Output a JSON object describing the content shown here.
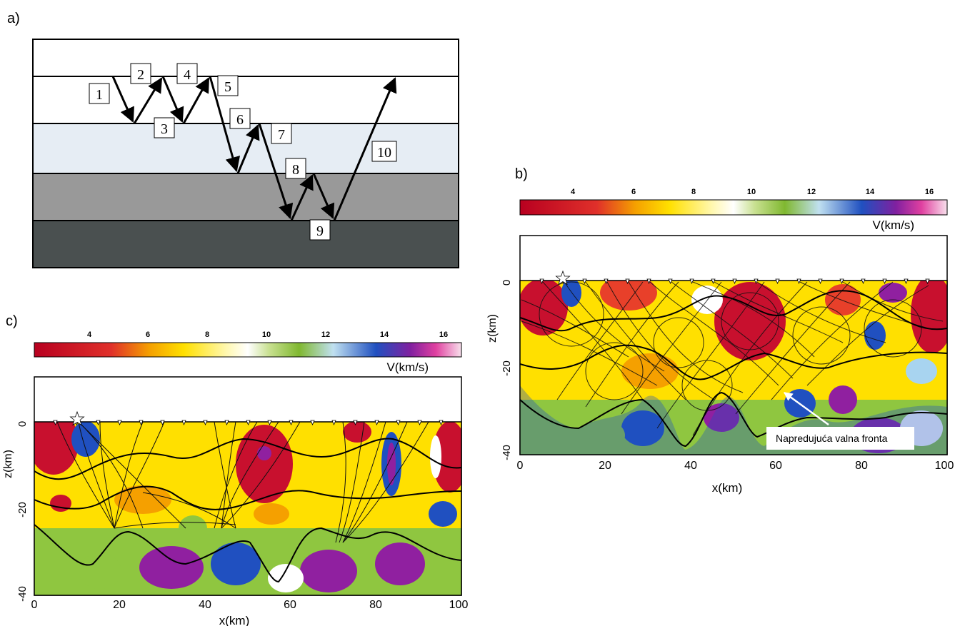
{
  "panel_a": {
    "label": "a)",
    "layers": [
      {
        "fill": "#ffffff"
      },
      {
        "fill": "#ffffff"
      },
      {
        "fill": "#e6edf4"
      },
      {
        "fill": "#999999"
      },
      {
        "fill": "#4a5050"
      }
    ],
    "ray_steps": [
      "1",
      "2",
      "3",
      "4",
      "5",
      "6",
      "7",
      "8",
      "9",
      "10"
    ]
  },
  "panel_b": {
    "label": "b)",
    "colorbar_ticks": [
      "4",
      "6",
      "8",
      "10",
      "12",
      "14",
      "16"
    ],
    "colorbar_unit": "V(km/s)",
    "x_axis_label": "x(km)",
    "y_axis_label": "z(km)",
    "x_ticks": [
      "0",
      "20",
      "40",
      "60",
      "80",
      "100"
    ],
    "y_ticks": [
      "0",
      "-20",
      "-40"
    ],
    "annotation": "Napredujuća valna fronta"
  },
  "panel_c": {
    "label": "c)",
    "colorbar_ticks": [
      "4",
      "6",
      "8",
      "10",
      "12",
      "14",
      "16"
    ],
    "colorbar_unit": "V(km/s)",
    "x_axis_label": "x(km)",
    "y_axis_label": "z(km)",
    "x_ticks": [
      "0",
      "20",
      "40",
      "60",
      "80",
      "100"
    ],
    "y_ticks": [
      "0",
      "-20",
      "-40"
    ]
  },
  "colors": {
    "scale": [
      "#c8102e",
      "#e8402a",
      "#f5a000",
      "#ffe000",
      "#fff8a0",
      "#ffffff",
      "#8fc640",
      "#a8d4f0",
      "#2050c0",
      "#9020a0",
      "#e040a0",
      "#f8d0e0"
    ]
  }
}
